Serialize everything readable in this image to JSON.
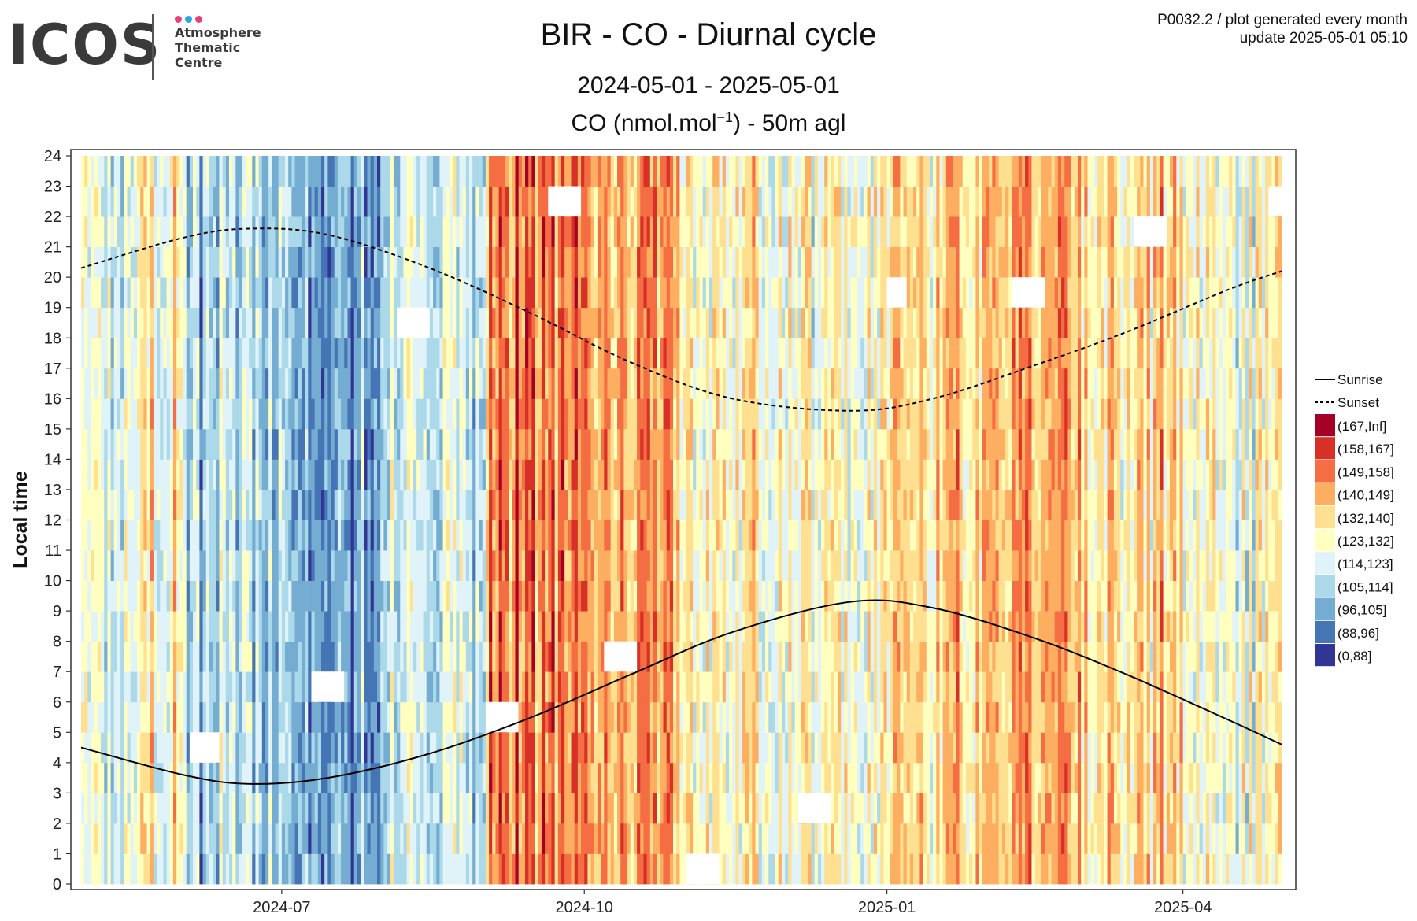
{
  "logo": {
    "wordmark": "ICOS",
    "line1": "Atmosphere",
    "line2": "Thematic",
    "line3": "Centre",
    "dot_colors": [
      "#e83e7a",
      "#2aa8e0",
      "#e83e7a"
    ]
  },
  "meta": {
    "line1": "P0032.2 / plot generated every month",
    "line2": "update  2025-05-01 05:10"
  },
  "title": "BIR - CO - Diurnal cycle",
  "date_range": "2024-05-01 - 2025-05-01",
  "measure": {
    "prefix": "CO (nmol.mol",
    "sup": "−1",
    "suffix": ") - 50m agl"
  },
  "chart_data": {
    "type": "heatmap",
    "ylabel": "Local time",
    "xlabel": "",
    "x_range": [
      "2024-05-01",
      "2025-05-01"
    ],
    "ylim": [
      0,
      24
    ],
    "y_ticks": [
      0,
      1,
      2,
      3,
      4,
      5,
      6,
      7,
      8,
      9,
      10,
      11,
      12,
      13,
      14,
      15,
      16,
      17,
      18,
      19,
      20,
      21,
      22,
      23,
      24
    ],
    "x_ticks": [
      "2024-07",
      "2024-10",
      "2025-01",
      "2025-04"
    ],
    "grid": true,
    "legend_position": "right",
    "bins": [
      {
        "label": "(167,Inf]",
        "color": "#a50026"
      },
      {
        "label": "(158,167]",
        "color": "#d73027"
      },
      {
        "label": "(149,158]",
        "color": "#f46d43"
      },
      {
        "label": "(140,149]",
        "color": "#fdae61"
      },
      {
        "label": "(132,140]",
        "color": "#fee090"
      },
      {
        "label": "(123,132]",
        "color": "#ffffbf"
      },
      {
        "label": "(114,123]",
        "color": "#e0f3f8"
      },
      {
        "label": "(105,114]",
        "color": "#abd9e9"
      },
      {
        "label": "(96,105]",
        "color": "#74add1"
      },
      {
        "label": "(88,96]",
        "color": "#4575b4"
      },
      {
        "label": "(0,88]",
        "color": "#313695"
      }
    ],
    "level_by_month": [
      {
        "month": "2024-05",
        "typical_bin": "(123,132]"
      },
      {
        "month": "2024-06",
        "typical_bin": "(105,114]"
      },
      {
        "month": "2024-07",
        "typical_bin": "(96,105]"
      },
      {
        "month": "2024-08",
        "typical_bin": "(114,123]"
      },
      {
        "month": "2024-09",
        "typical_bin": "(149,158]"
      },
      {
        "month": "2024-10",
        "typical_bin": "(140,149]"
      },
      {
        "month": "2024-11",
        "typical_bin": "(123,132]"
      },
      {
        "month": "2024-12",
        "typical_bin": "(123,132]"
      },
      {
        "month": "2025-01",
        "typical_bin": "(132,140]"
      },
      {
        "month": "2025-02",
        "typical_bin": "(140,149]"
      },
      {
        "month": "2025-03",
        "typical_bin": "(132,140]"
      },
      {
        "month": "2025-04",
        "typical_bin": "(123,132]"
      }
    ],
    "series": [
      {
        "name": "Sunrise",
        "style": "solid",
        "x": [
          "2024-05-01",
          "2024-06-01",
          "2024-06-21",
          "2024-07-15",
          "2024-08-15",
          "2024-09-15",
          "2024-10-15",
          "2024-11-15",
          "2024-12-21",
          "2025-01-15",
          "2025-02-15",
          "2025-03-15",
          "2025-04-15",
          "2025-05-01"
        ],
        "y": [
          4.5,
          3.6,
          3.3,
          3.5,
          4.3,
          5.5,
          6.9,
          8.3,
          9.3,
          9.1,
          8.1,
          6.9,
          5.4,
          4.6
        ]
      },
      {
        "name": "Sunset",
        "style": "dashed",
        "x": [
          "2024-05-01",
          "2024-06-01",
          "2024-06-21",
          "2024-07-15",
          "2024-08-15",
          "2024-09-15",
          "2024-10-15",
          "2024-11-15",
          "2024-12-21",
          "2025-01-15",
          "2025-02-15",
          "2025-03-15",
          "2025-04-15",
          "2025-05-01"
        ],
        "y": [
          20.3,
          21.3,
          21.6,
          21.4,
          20.3,
          18.8,
          17.2,
          16.0,
          15.6,
          16.0,
          17.1,
          18.2,
          19.6,
          20.2
        ]
      }
    ],
    "missing_blocks": [
      {
        "x_start": "2024-06-03",
        "x_end": "2024-06-12",
        "y_start": 4,
        "y_end": 5
      },
      {
        "x_start": "2024-07-10",
        "x_end": "2024-07-20",
        "y_start": 6,
        "y_end": 7
      },
      {
        "x_start": "2024-08-05",
        "x_end": "2024-08-15",
        "y_start": 18,
        "y_end": 19
      },
      {
        "x_start": "2024-09-01",
        "x_end": "2024-09-11",
        "y_start": 5,
        "y_end": 6
      },
      {
        "x_start": "2024-09-20",
        "x_end": "2024-09-30",
        "y_start": 22,
        "y_end": 23
      },
      {
        "x_start": "2024-10-07",
        "x_end": "2024-10-17",
        "y_start": 7,
        "y_end": 8
      },
      {
        "x_start": "2024-11-01",
        "x_end": "2024-11-11",
        "y_start": 0,
        "y_end": 1
      },
      {
        "x_start": "2024-12-05",
        "x_end": "2024-12-15",
        "y_start": 2,
        "y_end": 3
      },
      {
        "x_start": "2025-01-01",
        "x_end": "2025-01-07",
        "y_start": 19,
        "y_end": 20
      },
      {
        "x_start": "2025-02-08",
        "x_end": "2025-02-18",
        "y_start": 19,
        "y_end": 20
      },
      {
        "x_start": "2025-03-17",
        "x_end": "2025-03-27",
        "y_start": 21,
        "y_end": 22
      },
      {
        "x_start": "2025-04-27",
        "x_end": "2025-05-01",
        "y_start": 22,
        "y_end": 23
      }
    ]
  }
}
